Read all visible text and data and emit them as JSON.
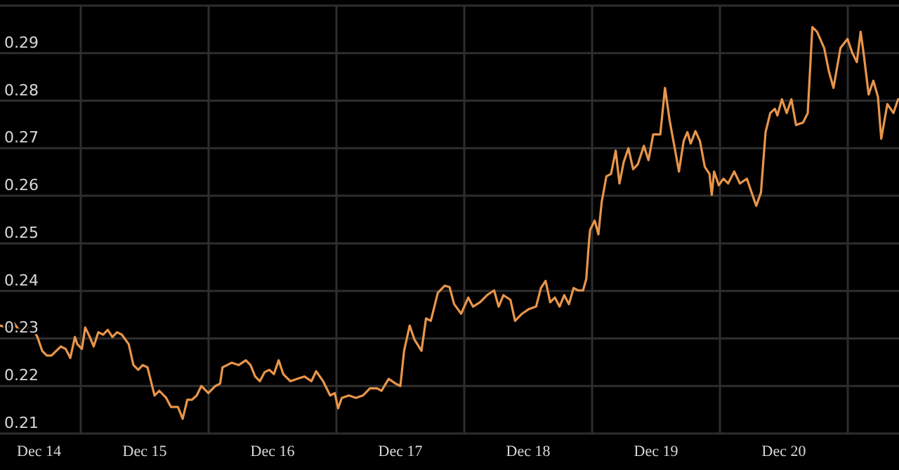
{
  "chart_data": {
    "type": "line",
    "xlim": [
      "--12-13T20:50",
      "--12-20T21:37"
    ],
    "ylim": [
      0.21,
      0.3
    ],
    "xticks": [
      {
        "value": "--12-14",
        "label": "Dec 14"
      },
      {
        "value": "--12-14T12:00",
        "label": null
      },
      {
        "value": "--12-15",
        "label": "Dec 15"
      },
      {
        "value": "--12-15T12:00",
        "label": null
      },
      {
        "value": "--12-16",
        "label": "Dec 16"
      },
      {
        "value": "--12-16T12:00",
        "label": null
      },
      {
        "value": "--12-17",
        "label": "Dec 17"
      },
      {
        "value": "--12-17T12:00",
        "label": null
      },
      {
        "value": "--12-18",
        "label": "Dec 18"
      },
      {
        "value": "--12-18T12:00",
        "label": null
      },
      {
        "value": "--12-19",
        "label": "Dec 19"
      },
      {
        "value": "--12-19T12:00",
        "label": null
      },
      {
        "value": "--12-20",
        "label": "Dec 20"
      },
      {
        "value": "--12-20T12:00",
        "label": null
      }
    ],
    "yticks": [
      0.21,
      0.22,
      0.23,
      0.24,
      0.25,
      0.26,
      0.27,
      0.28,
      0.29
    ],
    "grid": true,
    "marker": "none",
    "line_style": "solid",
    "series": [
      {
        "color": "#e8954a",
        "x": [
          "--12-13T20:50",
          "--12-13T22:09",
          "--12-13T23:28",
          "--12-14T00:22",
          "--12-14T01:41",
          "--12-14T03:00",
          "--12-14T03:52",
          "--12-14T04:45",
          "--12-14T05:37",
          "--12-14T06:30",
          "--12-14T07:24",
          "--12-14T08:15",
          "--12-14T09:09",
          "--12-14T10:02",
          "--12-14T10:54",
          "--12-14T11:21",
          "--12-14T12:13",
          "--12-14T12:50",
          "--12-14T13:42",
          "--12-14T14:25",
          "--12-14T15:17",
          "--12-14T16:11",
          "--12-14T17:04",
          "--12-14T17:56",
          "--12-14T18:49",
          "--12-14T19:42",
          "--12-14T21:00",
          "--12-14T21:53",
          "--12-14T22:47",
          "--12-14T23:38",
          "--12-15T00:32",
          "--12-15T01:51",
          "--12-15T02:44",
          "--12-15T04:02",
          "--12-15T04:55",
          "--12-15T06:14",
          "--12-15T07:08",
          "--12-15T08:00",
          "--12-15T08:53",
          "--12-15T09:46",
          "--12-15T10:38",
          "--12-15T11:57",
          "--12-15T13:16",
          "--12-15T14:10",
          "--12-15T14:36",
          "--12-15T15:29",
          "--12-15T16:21",
          "--12-15T17:40",
          "--12-15T18:59",
          "--12-15T19:52",
          "--12-15T20:44",
          "--12-15T21:37",
          "--12-15T22:31",
          "--12-15T23:23",
          "--12-16T00:16",
          "--12-16T01:09",
          "--12-16T02:01",
          "--12-16T03:20",
          "--12-16T04:39",
          "--12-16T05:59",
          "--12-16T07:18",
          "--12-16T08:11",
          "--12-16T09:30",
          "--12-16T10:49",
          "--12-16T11:41",
          "--12-16T12:19",
          "--12-16T13:00",
          "--12-16T14:20",
          "--12-16T15:39",
          "--12-16T16:58",
          "--12-16T18:17",
          "--12-16T19:36",
          "--12-16T20:28",
          "--12-16T21:48",
          "--12-16T23:07",
          "--12-17T00:00",
          "--12-17T00:42",
          "--12-17T01:45",
          "--12-17T02:38",
          "--12-17T03:58",
          "--12-17T04:49",
          "--12-17T05:43",
          "--12-17T07:02",
          "--12-17T08:21",
          "--12-17T09:14",
          "--12-17T10:06",
          "--12-17T11:25",
          "--12-17T12:45",
          "--12-17T13:38",
          "--12-17T14:57",
          "--12-17T16:16",
          "--12-17T17:36",
          "--12-17T18:27",
          "--12-17T19:21",
          "--12-17T20:40",
          "--12-17T21:32",
          "--12-17T22:51",
          "--12-18T00:10",
          "--12-18T01:29",
          "--12-18T02:23",
          "--12-18T03:16",
          "--12-18T04:08",
          "--12-18T05:01",
          "--12-18T05:53",
          "--12-18T06:46",
          "--12-18T07:39",
          "--12-18T08:31",
          "--12-18T09:24",
          "--12-18T10:18",
          "--12-18T10:54",
          "--12-18T11:25",
          "--12-18T11:37",
          "--12-18T12:29",
          "--12-18T13:11",
          "--12-18T13:48",
          "--12-18T14:41",
          "--12-18T15:33",
          "--12-18T16:26",
          "--12-18T17:08",
          "--12-18T17:56",
          "--12-18T18:49",
          "--12-18T19:42",
          "--12-18T20:34",
          "--12-18T21:43",
          "--12-18T22:35",
          "--12-18T23:28",
          "--12-19T00:48",
          "--12-19T01:41",
          "--12-19T02:33",
          "--12-19T03:26",
          "--12-19T04:18",
          "--12-19T05:11",
          "--12-19T05:53",
          "--12-19T06:30",
          "--12-19T07:24",
          "--12-19T08:15",
          "--12-19T09:09",
          "--12-19T10:02",
          "--12-19T10:28",
          "--12-19T10:54",
          "--12-19T11:47",
          "--12-19T12:39",
          "--12-19T13:32",
          "--12-19T14:41",
          "--12-19T15:45",
          "--12-19T17:04",
          "--12-19T17:56",
          "--12-19T18:49",
          "--12-19T19:42",
          "--12-19T20:34",
          "--12-19T21:27",
          "--12-19T22:19",
          "--12-19T22:47",
          "--12-19T23:38",
          "--12-20T00:32",
          "--12-20T01:25",
          "--12-20T02:17",
          "--12-20T03:36",
          "--12-20T04:29",
          "--12-20T05:21",
          "--12-20T06:14",
          "--12-20T07:34",
          "--12-20T08:27",
          "--12-20T09:19",
          "--12-20T10:38",
          "--12-20T11:57",
          "--12-20T12:50",
          "--12-20T13:42",
          "--12-20T14:25",
          "--12-20T15:01",
          "--12-20T15:55",
          "--12-20T16:48",
          "--12-20T17:40",
          "--12-20T18:17",
          "--12-20T19:26",
          "--12-20T20:34",
          "--12-20T21:27"
        ],
        "values": [
          0.2327,
          0.2323,
          0.2332,
          0.2318,
          0.2323,
          0.2318,
          0.2303,
          0.2274,
          0.2264,
          0.2264,
          0.2274,
          0.2283,
          0.2278,
          0.2259,
          0.2303,
          0.2288,
          0.2278,
          0.2323,
          0.2303,
          0.2283,
          0.2313,
          0.2308,
          0.2318,
          0.2303,
          0.2313,
          0.2308,
          0.2288,
          0.2244,
          0.2234,
          0.2244,
          0.2239,
          0.218,
          0.219,
          0.2175,
          0.2156,
          0.2156,
          0.2131,
          0.2171,
          0.2171,
          0.218,
          0.22,
          0.2185,
          0.22,
          0.2205,
          0.2239,
          0.2244,
          0.2249,
          0.2244,
          0.2254,
          0.2244,
          0.222,
          0.221,
          0.2229,
          0.2234,
          0.2225,
          0.2254,
          0.2225,
          0.221,
          0.2215,
          0.222,
          0.221,
          0.2231,
          0.221,
          0.218,
          0.2185,
          0.2153,
          0.2175,
          0.218,
          0.2175,
          0.218,
          0.2195,
          0.2195,
          0.219,
          0.2215,
          0.2205,
          0.22,
          0.2274,
          0.2327,
          0.2298,
          0.2274,
          0.2342,
          0.2337,
          0.2396,
          0.2411,
          0.2408,
          0.2372,
          0.2352,
          0.2386,
          0.2367,
          0.2376,
          0.2391,
          0.2401,
          0.2367,
          0.2391,
          0.2381,
          0.2337,
          0.2352,
          0.2362,
          0.2367,
          0.2406,
          0.2421,
          0.2376,
          0.2386,
          0.2367,
          0.2391,
          0.2372,
          0.2406,
          0.2401,
          0.2401,
          0.2425,
          0.2504,
          0.2528,
          0.2548,
          0.2519,
          0.2587,
          0.2641,
          0.2646,
          0.2695,
          0.2626,
          0.2671,
          0.27,
          0.2656,
          0.2666,
          0.2705,
          0.2675,
          0.2729,
          0.2729,
          0.2827,
          0.2759,
          0.2705,
          0.2651,
          0.2715,
          0.2734,
          0.271,
          0.2736,
          0.2715,
          0.2661,
          0.2646,
          0.2602,
          0.2651,
          0.2622,
          0.2636,
          0.2626,
          0.2651,
          0.2626,
          0.2636,
          0.2607,
          0.2579,
          0.2607,
          0.2734,
          0.2774,
          0.2783,
          0.2769,
          0.2803,
          0.2774,
          0.2803,
          0.2749,
          0.2754,
          0.2774,
          0.2955,
          0.2945,
          0.2911,
          0.2862,
          0.2827,
          0.2911,
          0.293,
          0.2901,
          0.2881,
          0.2945,
          0.2896,
          0.2813,
          0.2842,
          0.2808,
          0.272,
          0.2793,
          0.2774,
          0.2803
        ]
      }
    ]
  }
}
